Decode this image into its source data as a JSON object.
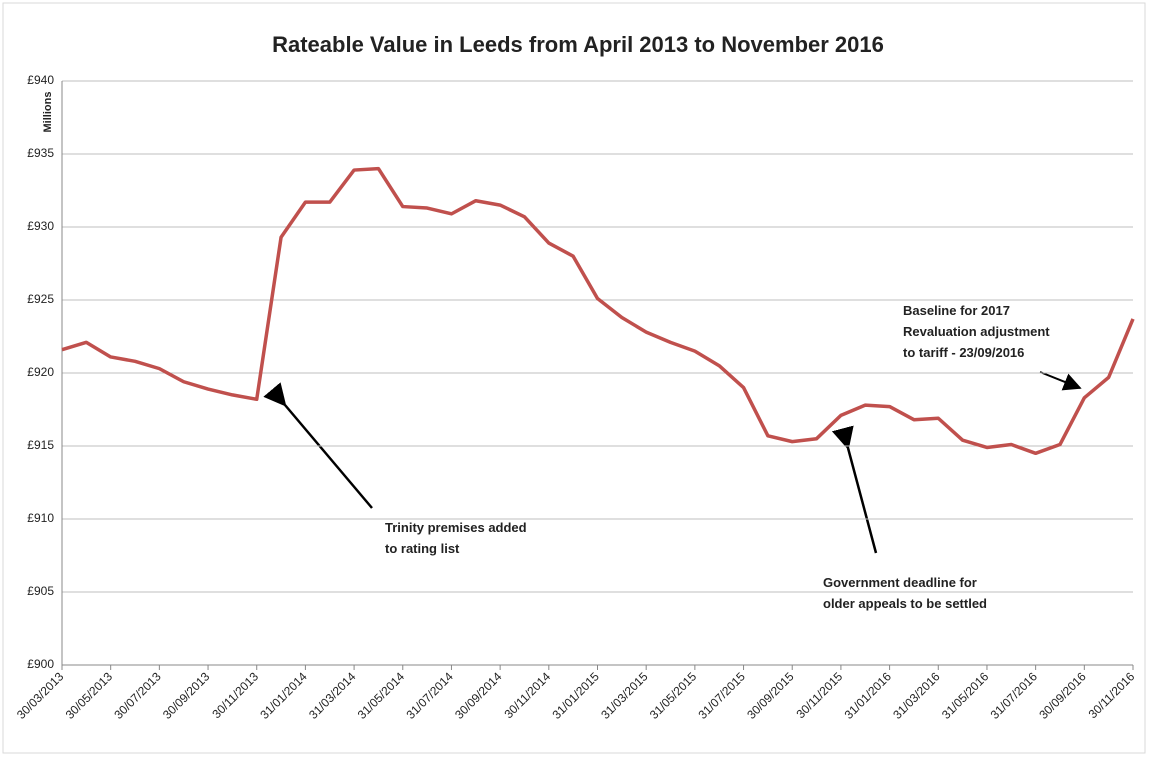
{
  "chart_data": {
    "type": "line",
    "title": "Rateable Value in Leeds from April 2013 to November 2016",
    "y_label": "Millions",
    "categories": [
      "30/03/2013",
      null,
      "30/05/2013",
      null,
      "30/07/2013",
      null,
      "30/09/2013",
      null,
      "30/11/2013",
      null,
      "31/01/2014",
      null,
      "31/03/2014",
      null,
      "31/05/2014",
      null,
      "31/07/2014",
      null,
      "30/09/2014",
      null,
      "30/11/2014",
      null,
      "31/01/2015",
      null,
      "31/03/2015",
      null,
      "31/05/2015",
      null,
      "31/07/2015",
      null,
      "30/09/2015",
      null,
      "30/11/2015",
      null,
      "31/01/2016",
      null,
      "31/03/2016",
      null,
      "31/05/2016",
      null,
      "31/07/2016",
      null,
      "30/09/2016",
      null,
      "30/11/2016"
    ],
    "values": [
      921.6,
      922.1,
      921.1,
      920.8,
      920.3,
      919.4,
      918.9,
      918.5,
      918.2,
      929.3,
      931.7,
      931.7,
      933.9,
      934.0,
      931.4,
      931.3,
      930.9,
      931.8,
      931.5,
      930.7,
      928.9,
      928.0,
      925.1,
      923.8,
      922.8,
      922.1,
      921.5,
      920.5,
      919.0,
      915.7,
      915.3,
      915.5,
      917.1,
      917.8,
      917.7,
      916.8,
      916.9,
      915.4,
      914.9,
      915.1,
      914.5,
      915.1,
      918.3,
      919.7,
      923.7
    ],
    "color": "#c0504d",
    "ylim": [
      900,
      940
    ],
    "yticks": [
      {
        "value": 900,
        "label": "£900"
      },
      {
        "value": 905,
        "label": "£905"
      },
      {
        "value": 910,
        "label": "£910"
      },
      {
        "value": 915,
        "label": "£915"
      },
      {
        "value": 920,
        "label": "£920"
      },
      {
        "value": 925,
        "label": "£925"
      },
      {
        "value": 930,
        "label": "£930"
      },
      {
        "value": 935,
        "label": "£935"
      },
      {
        "value": 940,
        "label": "£940"
      }
    ],
    "grid": true,
    "annotations": [
      {
        "lines": [
          "Trinity premises added",
          "to rating list"
        ]
      },
      {
        "lines": [
          "Government deadline for",
          "older appeals to be settled"
        ]
      },
      {
        "lines": [
          "Baseline for 2017",
          "Revaluation adjustment",
          "to tariff - 23/09/2016"
        ]
      }
    ]
  }
}
